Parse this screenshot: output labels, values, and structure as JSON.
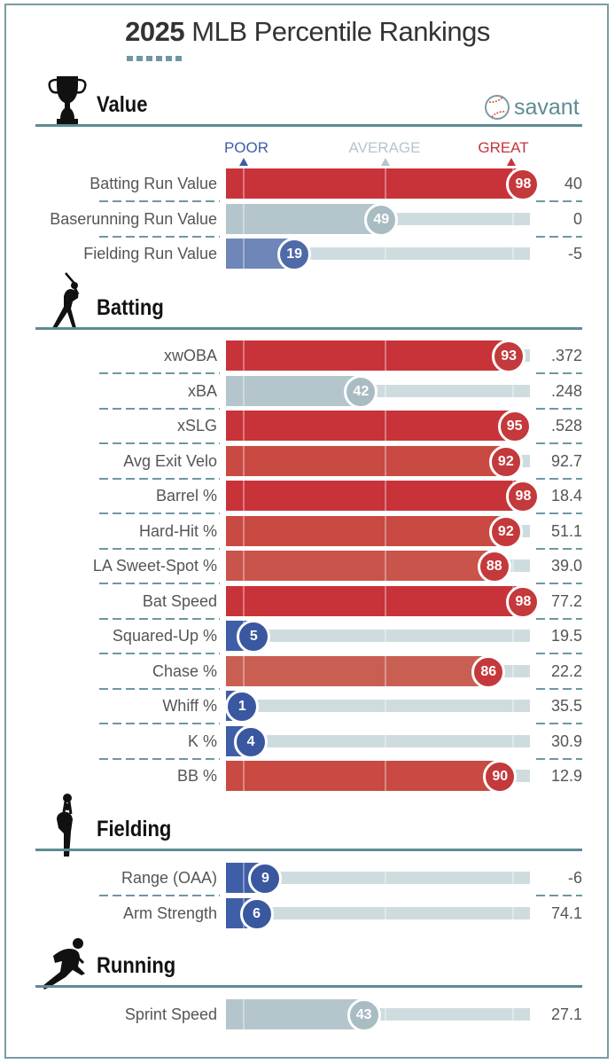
{
  "header": {
    "year": "2025",
    "title": "MLB Percentile Rankings"
  },
  "logo": {
    "text": "savant",
    "icon": "baseball-icon"
  },
  "legend": {
    "poor": "POOR",
    "average": "AVERAGE",
    "great": "GREAT"
  },
  "colors": {
    "great": "#c8333a",
    "poor": "#3f5ea8",
    "average": "#b4c6cc",
    "accent": "#5f8b93"
  },
  "chart_data": {
    "type": "bar",
    "title": "2025 MLB Percentile Rankings",
    "xlim": [
      0,
      100
    ],
    "legend": [
      "POOR",
      "AVERAGE",
      "GREAT"
    ],
    "sections": [
      {
        "name": "Value",
        "icon": "trophy-icon",
        "rows": [
          {
            "label": "Batting Run Value",
            "percentile": 98,
            "value": "40"
          },
          {
            "label": "Baserunning Run Value",
            "percentile": 49,
            "value": "0"
          },
          {
            "label": "Fielding Run Value",
            "percentile": 19,
            "value": "-5"
          }
        ]
      },
      {
        "name": "Batting",
        "icon": "batter-icon",
        "rows": [
          {
            "label": "xwOBA",
            "percentile": 93,
            "value": ".372"
          },
          {
            "label": "xBA",
            "percentile": 42,
            "value": ".248"
          },
          {
            "label": "xSLG",
            "percentile": 95,
            "value": ".528"
          },
          {
            "label": "Avg Exit Velo",
            "percentile": 92,
            "value": "92.7"
          },
          {
            "label": "Barrel %",
            "percentile": 98,
            "value": "18.4"
          },
          {
            "label": "Hard-Hit %",
            "percentile": 92,
            "value": "51.1"
          },
          {
            "label": "LA Sweet-Spot %",
            "percentile": 88,
            "value": "39.0"
          },
          {
            "label": "Bat Speed",
            "percentile": 98,
            "value": "77.2"
          },
          {
            "label": "Squared-Up %",
            "percentile": 5,
            "value": "19.5"
          },
          {
            "label": "Chase %",
            "percentile": 86,
            "value": "22.2"
          },
          {
            "label": "Whiff %",
            "percentile": 1,
            "value": "35.5"
          },
          {
            "label": "K %",
            "percentile": 4,
            "value": "30.9"
          },
          {
            "label": "BB %",
            "percentile": 90,
            "value": "12.9"
          }
        ]
      },
      {
        "name": "Fielding",
        "icon": "fielder-icon",
        "rows": [
          {
            "label": "Range (OAA)",
            "percentile": 9,
            "value": "-6"
          },
          {
            "label": "Arm Strength",
            "percentile": 6,
            "value": "74.1"
          }
        ]
      },
      {
        "name": "Running",
        "icon": "runner-icon",
        "rows": [
          {
            "label": "Sprint Speed",
            "percentile": 43,
            "value": "27.1"
          }
        ]
      }
    ]
  }
}
